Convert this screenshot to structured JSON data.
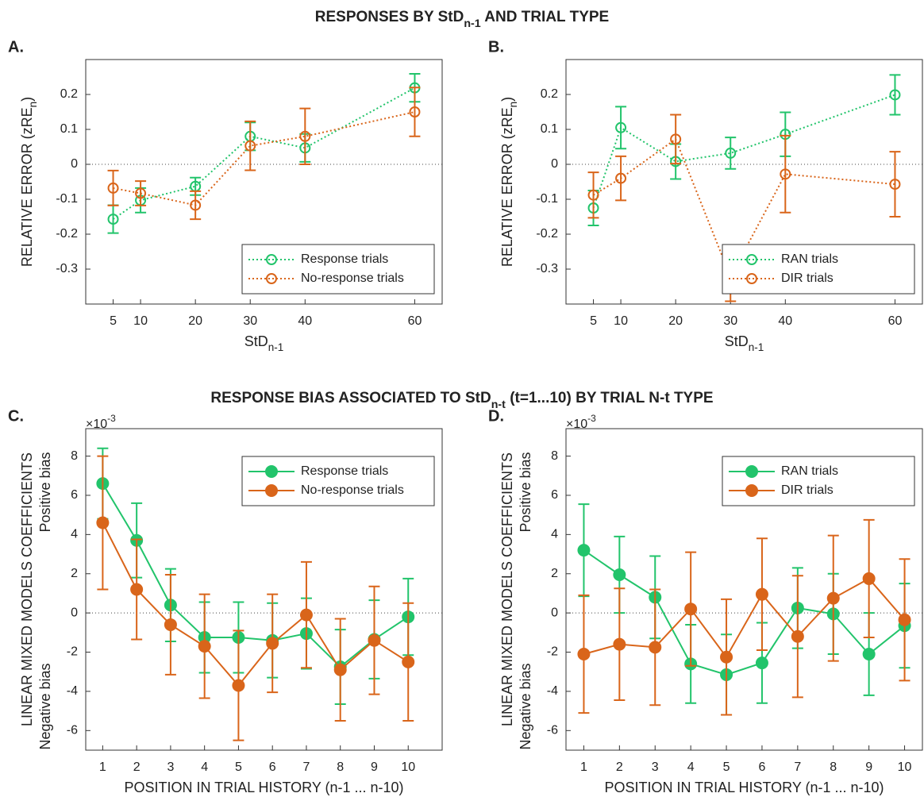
{
  "titles": [
    [
      "RESPONSES BY StD",
      "n-1",
      " AND TRIAL TYPE"
    ],
    [
      "RESPONSE BIAS ASSOCIATED TO StD",
      "n-t",
      " (t=1...10) BY TRIAL N-t TYPE"
    ]
  ],
  "chart_data": [
    {
      "type": "line",
      "panel": "A.",
      "xlabel": [
        "StD",
        "n-1"
      ],
      "ylabel": [
        "RELATIVE ERROR (zRE",
        "n",
        ")"
      ],
      "xlim": [
        0,
        65
      ],
      "ylim": [
        -0.4,
        0.3
      ],
      "xticks": [
        5,
        10,
        20,
        30,
        40,
        60
      ],
      "yticks": [
        -0.3,
        -0.2,
        -0.1,
        0,
        0.1,
        0.2
      ],
      "zero_line": true,
      "line_style": "dotted",
      "marker": "open",
      "legend": "lower right",
      "series": [
        {
          "name": "Response trials",
          "color": "#22c46b",
          "x": [
            5,
            10,
            20,
            30,
            40,
            60
          ],
          "values": [
            -0.157,
            -0.103,
            -0.063,
            0.08,
            0.047,
            0.219
          ],
          "errors": [
            0.04,
            0.035,
            0.025,
            0.04,
            0.04,
            0.04
          ]
        },
        {
          "name": "No-response trials",
          "color": "#d9651a",
          "x": [
            5,
            10,
            20,
            30,
            40,
            60
          ],
          "values": [
            -0.068,
            -0.083,
            -0.117,
            0.053,
            0.08,
            0.15
          ],
          "errors": [
            0.05,
            0.035,
            0.04,
            0.07,
            0.08,
            0.07
          ]
        }
      ]
    },
    {
      "type": "line",
      "panel": "B.",
      "xlabel": [
        "StD",
        "n-1"
      ],
      "ylabel": [
        "RELATIVE ERROR (zRE",
        "n",
        ")"
      ],
      "xlim": [
        0,
        65
      ],
      "ylim": [
        -0.4,
        0.3
      ],
      "xticks": [
        5,
        10,
        20,
        30,
        40,
        60
      ],
      "yticks": [
        -0.3,
        -0.2,
        -0.1,
        0,
        0.1,
        0.2
      ],
      "zero_line": true,
      "line_style": "dotted",
      "marker": "open",
      "legend": "lower right",
      "series": [
        {
          "name": "RAN trials",
          "color": "#22c46b",
          "x": [
            5,
            10,
            20,
            30,
            40,
            60
          ],
          "values": [
            -0.125,
            0.105,
            0.008,
            0.032,
            0.086,
            0.199
          ],
          "errors": [
            0.05,
            0.06,
            0.05,
            0.045,
            0.063,
            0.057
          ]
        },
        {
          "name": "DIR trials",
          "color": "#d9651a",
          "x": [
            5,
            10,
            20,
            30,
            40,
            60
          ],
          "values": [
            -0.088,
            -0.04,
            0.072,
            -0.322,
            -0.028,
            -0.057
          ],
          "errors": [
            0.065,
            0.063,
            0.07,
            0.07,
            0.11,
            0.093
          ]
        }
      ]
    },
    {
      "type": "line",
      "panel": "C.",
      "xlabel": [
        "POSITION IN TRIAL HISTORY (n-1 ... n-10)"
      ],
      "ylabel": [
        "LINEAR MIXED MODELS COEFFICIENTS"
      ],
      "bias_labels": [
        "Positive bias",
        "Negative bias"
      ],
      "scale_label": [
        "×10",
        "-3"
      ],
      "xlim": [
        0.5,
        11
      ],
      "ylim": [
        -7,
        9.4
      ],
      "xticks": [
        1,
        2,
        3,
        4,
        5,
        6,
        7,
        8,
        9,
        10
      ],
      "yticks": [
        -6,
        -4,
        -2,
        0,
        2,
        4,
        6,
        8
      ],
      "zero_line": true,
      "line_style": "solid",
      "marker": "filled",
      "legend": "upper right",
      "series": [
        {
          "name": "Response trials",
          "color": "#22c46b",
          "x": [
            1,
            2,
            3,
            4,
            5,
            6,
            7,
            8,
            9,
            10
          ],
          "values": [
            6.6,
            3.7,
            0.4,
            -1.25,
            -1.25,
            -1.4,
            -1.05,
            -2.75,
            -1.35,
            -0.2
          ],
          "errors": [
            1.8,
            1.9,
            1.85,
            1.8,
            1.8,
            1.9,
            1.8,
            1.9,
            2.0,
            1.95
          ]
        },
        {
          "name": "No-response trials",
          "color": "#d9651a",
          "x": [
            1,
            2,
            3,
            4,
            5,
            6,
            7,
            8,
            9,
            10
          ],
          "values": [
            4.6,
            1.2,
            -0.6,
            -1.7,
            -3.7,
            -1.55,
            -0.1,
            -2.9,
            -1.4,
            -2.5
          ],
          "errors": [
            3.4,
            2.55,
            2.55,
            2.65,
            2.8,
            2.5,
            2.7,
            2.6,
            2.75,
            3.0
          ]
        }
      ]
    },
    {
      "type": "line",
      "panel": "D.",
      "xlabel": [
        "POSITION IN TRIAL HISTORY (n-1 ... n-10)"
      ],
      "ylabel": [
        "LINEAR MIXED MODELS COEFFICIENTS"
      ],
      "bias_labels": [
        "Positive bias",
        "Negative bias"
      ],
      "scale_label": [
        "×10",
        "-3"
      ],
      "xlim": [
        0.5,
        10.5
      ],
      "ylim": [
        -7,
        9.4
      ],
      "xticks": [
        1,
        2,
        3,
        4,
        5,
        6,
        7,
        8,
        9,
        10
      ],
      "yticks": [
        -6,
        -4,
        -2,
        0,
        2,
        4,
        6,
        8
      ],
      "zero_line": true,
      "line_style": "solid",
      "marker": "filled",
      "legend": "upper right",
      "series": [
        {
          "name": "RAN trials",
          "color": "#22c46b",
          "x": [
            1,
            2,
            3,
            4,
            5,
            6,
            7,
            8,
            9,
            10
          ],
          "values": [
            3.2,
            1.95,
            0.8,
            -2.6,
            -3.15,
            -2.55,
            0.25,
            -0.05,
            -2.1,
            -0.65
          ],
          "errors": [
            2.35,
            1.95,
            2.1,
            2.0,
            2.05,
            2.05,
            2.05,
            2.05,
            2.1,
            2.15
          ]
        },
        {
          "name": "DIR trials",
          "color": "#d9651a",
          "x": [
            1,
            2,
            3,
            4,
            5,
            6,
            7,
            8,
            9,
            10
          ],
          "values": [
            -2.1,
            -1.6,
            -1.75,
            0.2,
            -2.25,
            0.95,
            -1.2,
            0.75,
            1.75,
            -0.35
          ],
          "errors": [
            3.0,
            2.85,
            2.95,
            2.9,
            2.95,
            2.85,
            3.1,
            3.2,
            3.0,
            3.1
          ]
        }
      ]
    }
  ]
}
